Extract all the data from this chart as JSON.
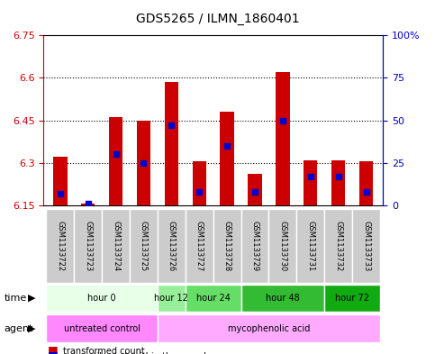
{
  "title": "GDS5265 / ILMN_1860401",
  "samples": [
    "GSM1133722",
    "GSM1133723",
    "GSM1133724",
    "GSM1133725",
    "GSM1133726",
    "GSM1133727",
    "GSM1133728",
    "GSM1133729",
    "GSM1133730",
    "GSM1133731",
    "GSM1133732",
    "GSM1133733"
  ],
  "transformed_counts": [
    6.32,
    6.155,
    6.46,
    6.45,
    6.585,
    6.305,
    6.48,
    6.26,
    6.62,
    6.31,
    6.31,
    6.305
  ],
  "percentile_ranks": [
    7,
    1,
    30,
    25,
    47,
    8,
    35,
    8,
    50,
    17,
    17,
    8
  ],
  "ymin": 6.15,
  "ymax": 6.75,
  "yticks": [
    6.15,
    6.3,
    6.45,
    6.6,
    6.75
  ],
  "ytick_labels": [
    "6.15",
    "6.3",
    "6.45",
    "6.6",
    "6.75"
  ],
  "y2min": 0,
  "y2max": 100,
  "y2ticks": [
    0,
    25,
    50,
    75,
    100
  ],
  "y2tick_labels": [
    "0",
    "25",
    "50",
    "75",
    "100%"
  ],
  "bar_color": "#cc0000",
  "dot_color": "#0000cc",
  "bar_width": 0.5,
  "time_groups": [
    {
      "label": "hour 0",
      "samples": [
        0,
        1,
        2,
        3
      ],
      "color": "#ccffcc"
    },
    {
      "label": "hour 12",
      "samples": [
        4
      ],
      "color": "#99ff99"
    },
    {
      "label": "hour 24",
      "samples": [
        5,
        6
      ],
      "color": "#66ee66"
    },
    {
      "label": "hour 48",
      "samples": [
        7,
        8,
        9
      ],
      "color": "#33cc33"
    },
    {
      "label": "hour 72",
      "samples": [
        10,
        11
      ],
      "color": "#22bb22"
    }
  ],
  "agent_groups": [
    {
      "label": "untreated control",
      "samples": [
        0,
        1,
        2,
        3
      ],
      "color": "#ff88ff"
    },
    {
      "label": "mycophenolic acid",
      "samples": [
        4,
        5,
        6,
        7,
        8,
        9,
        10,
        11
      ],
      "color": "#ffaaff"
    }
  ],
  "xlabel_color": "#888888",
  "ylabel_left_color": "#cc0000",
  "ylabel_right_color": "#0000cc",
  "grid_color": "#000000",
  "background_color": "#ffffff",
  "plot_bg_color": "#ffffff",
  "sample_bg_color": "#cccccc"
}
